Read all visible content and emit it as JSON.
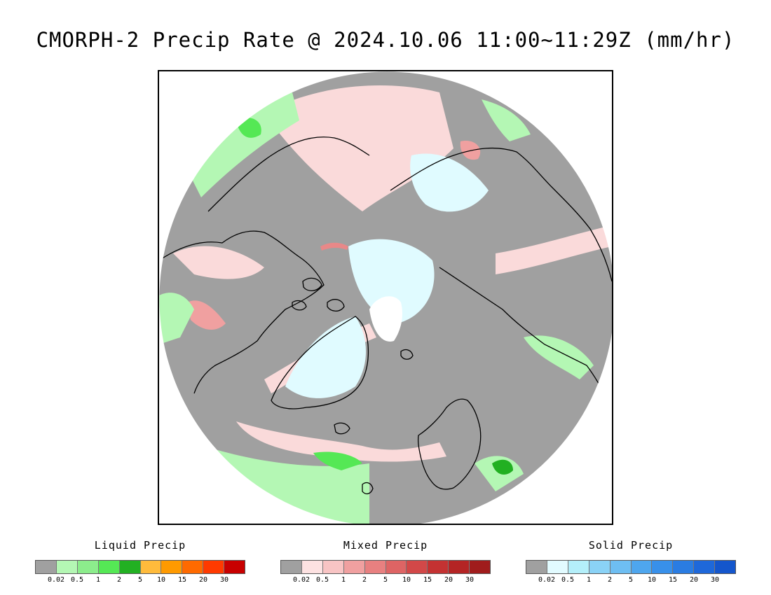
{
  "title": "CMORPH-2 Precip Rate @ 2024.10.06 11:00~11:29Z (mm/hr)",
  "colors": {
    "no_precip": "#a0a0a0",
    "liquid_light": "#b4f7b4",
    "liquid_mid": "#55e855",
    "liquid_heavy": "#22b022",
    "mixed_light": "#fadada",
    "mixed_mid": "#e88888",
    "solid_light": "#e0fbff",
    "pole_gap": "#ffffff",
    "coastline": "#000000"
  },
  "legends": [
    {
      "title": "Liquid Precip",
      "colors": [
        "#a0a0a0",
        "#b4f7b4",
        "#8ced8c",
        "#55e855",
        "#22b022",
        "#ffbb3c",
        "#ff9a00",
        "#ff6a00",
        "#ff3a00",
        "#c80000"
      ],
      "ticks": [
        "0.02",
        "0.5",
        "1",
        "2",
        "5",
        "10",
        "15",
        "20",
        "30"
      ]
    },
    {
      "title": "Mixed Precip",
      "colors": [
        "#a0a0a0",
        "#fde2e2",
        "#f8c4c4",
        "#f0a0a0",
        "#e88080",
        "#de6464",
        "#d24848",
        "#c43232",
        "#b42424",
        "#a01c1c"
      ],
      "ticks": [
        "0.02",
        "0.5",
        "1",
        "2",
        "5",
        "10",
        "15",
        "20",
        "30"
      ]
    },
    {
      "title": "Solid Precip",
      "colors": [
        "#a0a0a0",
        "#e2fbff",
        "#b4effa",
        "#8ad2f6",
        "#6ebef2",
        "#4ea6ee",
        "#3890ea",
        "#2a7ce2",
        "#1e68da",
        "#1456cc"
      ],
      "ticks": [
        "0.02",
        "0.5",
        "1",
        "2",
        "5",
        "10",
        "15",
        "20",
        "30"
      ]
    }
  ]
}
